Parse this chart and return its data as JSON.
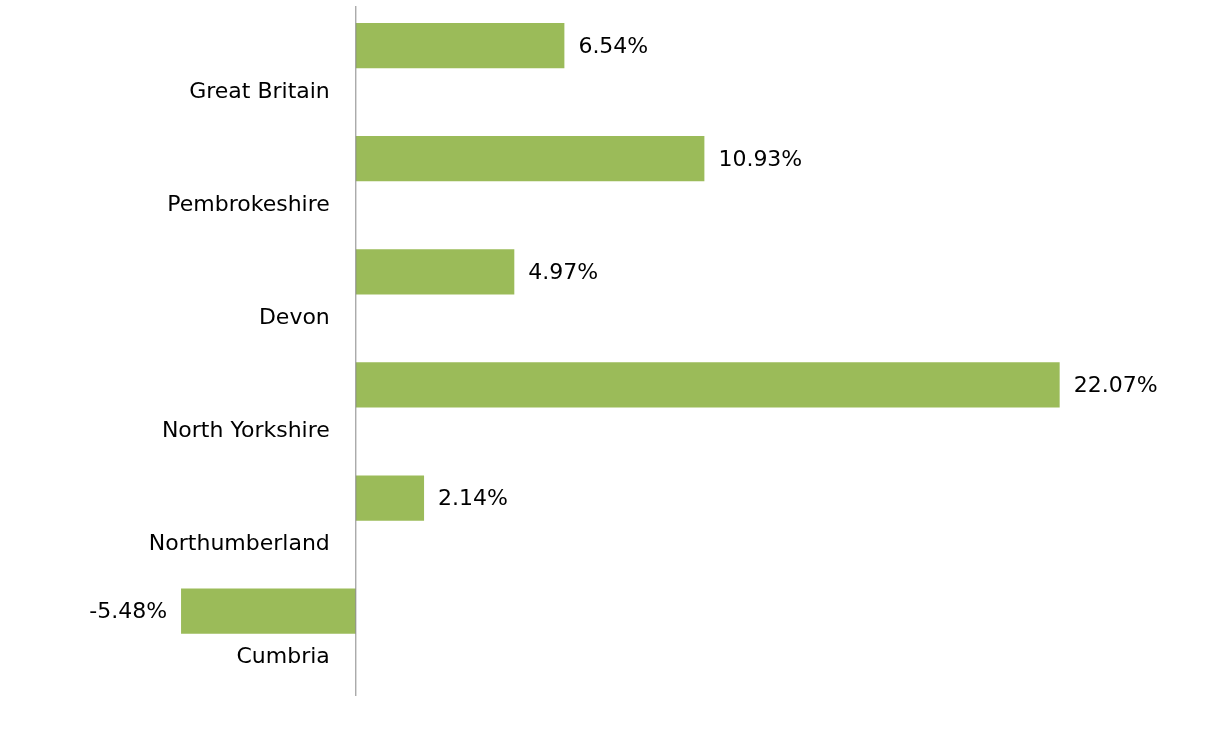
{
  "chart_data": {
    "type": "bar",
    "orientation": "horizontal",
    "categories": [
      "Great Britain",
      "Pembrokeshire",
      "Devon",
      "North Yorkshire",
      "Northumberland",
      "Cumbria"
    ],
    "values": [
      6.54,
      10.93,
      4.97,
      22.07,
      2.14,
      -5.48
    ],
    "value_labels": [
      "6.54%",
      "10.93%",
      "4.97%",
      "22.07%",
      "2.14%",
      "-5.48%"
    ],
    "color": "#9bbb59",
    "xlim": [
      -11,
      26
    ]
  }
}
